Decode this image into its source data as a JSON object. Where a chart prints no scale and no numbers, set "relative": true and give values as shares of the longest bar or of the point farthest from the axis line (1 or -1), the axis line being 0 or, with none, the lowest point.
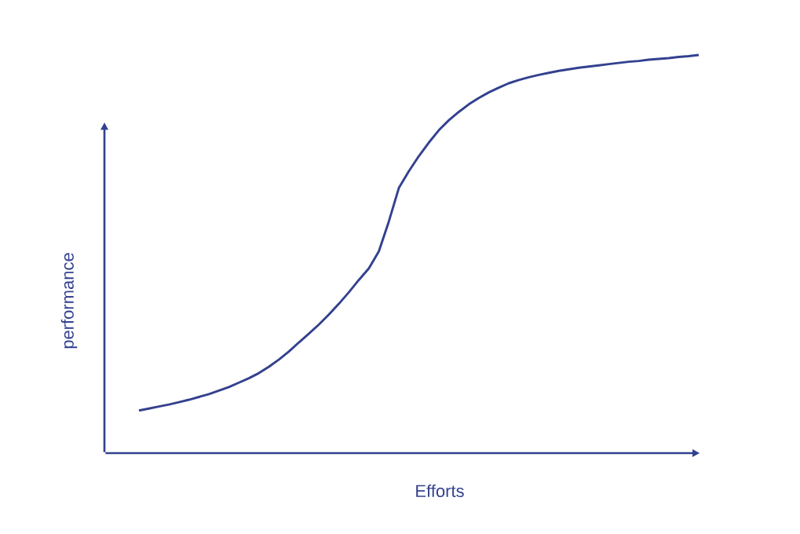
{
  "chart_data": {
    "type": "line",
    "relative": true,
    "xlabel": "Efforts",
    "ylabel": "performance",
    "categories": [
      null,
      null,
      null,
      null,
      null,
      null,
      null,
      null,
      null,
      null,
      null,
      null,
      null,
      null,
      null,
      null,
      null,
      null,
      null,
      null,
      null,
      null,
      null,
      null,
      null,
      null,
      null,
      null,
      null,
      null,
      null,
      null,
      null,
      null,
      null,
      null,
      null,
      null,
      null,
      null,
      null,
      null,
      null,
      null,
      null,
      null,
      null,
      null,
      null,
      null,
      null,
      null,
      null,
      null,
      null,
      null,
      null
    ],
    "series": [
      {
        "color": "#33418f",
        "values": [
          0.107,
          0.112,
          0.117,
          0.122,
          0.128,
          0.134,
          0.141,
          0.148,
          0.157,
          0.166,
          0.177,
          0.188,
          0.201,
          0.217,
          0.235,
          0.255,
          0.278,
          0.3,
          0.323,
          0.348,
          0.375,
          0.404,
          0.435,
          0.464,
          0.507,
          0.582,
          0.666,
          0.708,
          0.746,
          0.78,
          0.811,
          0.836,
          0.857,
          0.876,
          0.892,
          0.906,
          0.918,
          0.929,
          0.937,
          0.944,
          0.95,
          0.955,
          0.96,
          0.964,
          0.968,
          0.971,
          0.974,
          0.977,
          0.98,
          0.983,
          0.985,
          0.988,
          0.99,
          0.992,
          0.995,
          0.997,
          1
        ]
      }
    ]
  }
}
